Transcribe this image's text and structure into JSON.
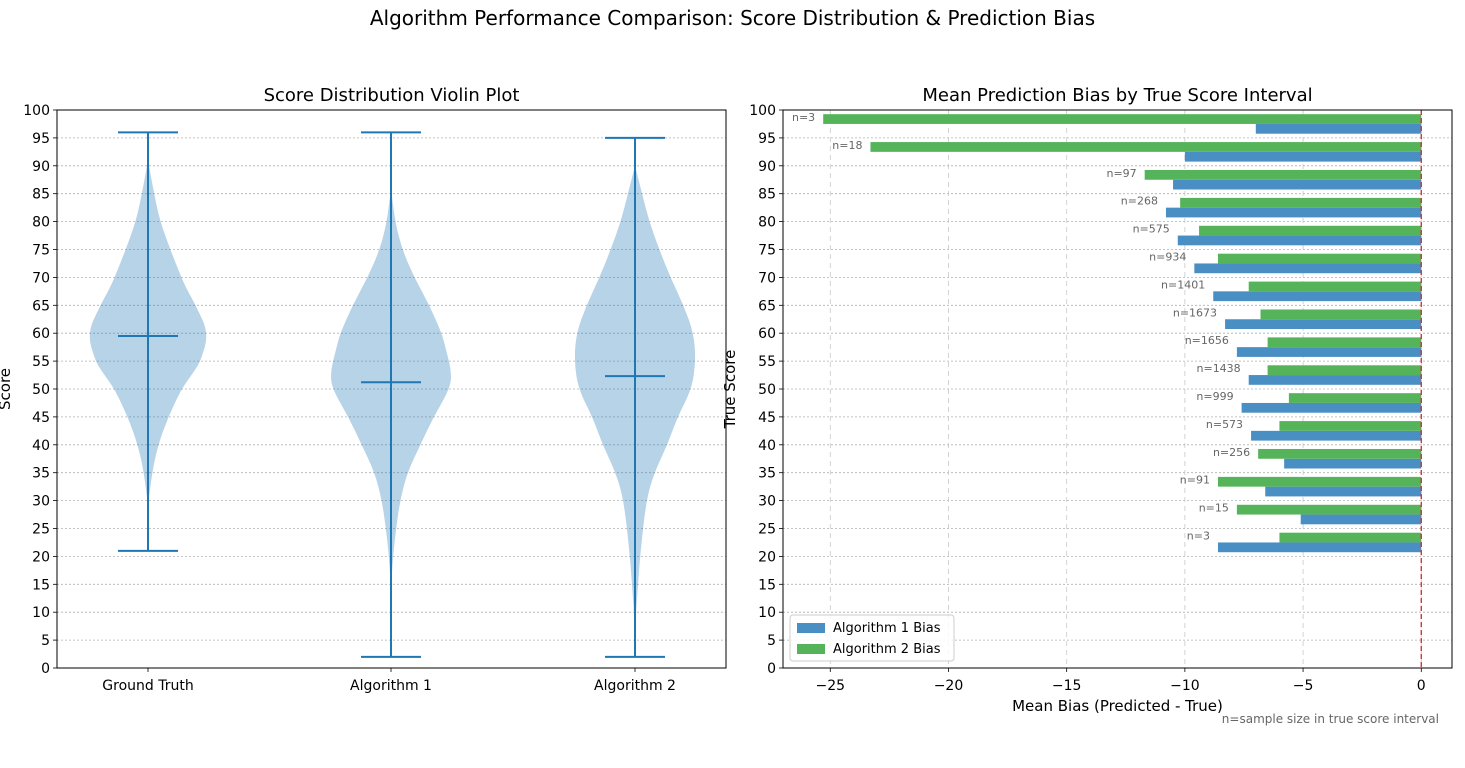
{
  "suptitle": "Algorithm Performance Comparison: Score Distribution & Prediction Bias",
  "footnote": "n=sample size in true score interval",
  "colors": {
    "violin_fill": "#1f77b4",
    "violin_line": "#1f77b4",
    "algo1": "#4a8fc4",
    "algo2": "#55b35a",
    "zero_line": "#d62728",
    "grid": "#b0b0b0",
    "annotation": "#666666"
  },
  "chart_data": [
    {
      "type": "violin",
      "title": "Score Distribution Violin Plot",
      "xlabel": "",
      "ylabel": "Score",
      "ylim": [
        0,
        100
      ],
      "yticks": [
        0,
        5,
        10,
        15,
        20,
        25,
        30,
        35,
        40,
        45,
        50,
        55,
        60,
        65,
        70,
        75,
        80,
        85,
        90,
        95,
        100
      ],
      "grid": "y, dotted",
      "categories": [
        "Ground Truth",
        "Algorithm 1",
        "Algorithm 2"
      ],
      "series": [
        {
          "category": "Ground Truth",
          "min": 21,
          "max": 96,
          "mean": 59.5,
          "density_y": [
            29,
            35,
            40,
            45,
            50,
            53,
            55,
            60,
            65,
            68,
            70,
            75,
            80,
            85,
            91
          ],
          "density_halfwidth": [
            0.0,
            0.04,
            0.1,
            0.2,
            0.33,
            0.45,
            0.52,
            0.6,
            0.47,
            0.38,
            0.33,
            0.22,
            0.12,
            0.06,
            0.0
          ]
        },
        {
          "category": "Algorithm 1",
          "min": 2,
          "max": 96,
          "mean": 51.2,
          "density_y": [
            14,
            20,
            25,
            30,
            35,
            40,
            45,
            50,
            53,
            58,
            60,
            65,
            70,
            75,
            80,
            86
          ],
          "density_halfwidth": [
            0.0,
            0.02,
            0.05,
            0.09,
            0.16,
            0.29,
            0.42,
            0.58,
            0.6,
            0.53,
            0.5,
            0.38,
            0.23,
            0.11,
            0.04,
            0.0
          ]
        },
        {
          "category": "Algorithm 2",
          "min": 2,
          "max": 95,
          "mean": 52.3,
          "density_y": [
            6,
            10,
            15,
            20,
            30,
            35,
            40,
            45,
            50,
            55,
            60,
            65,
            70,
            75,
            80,
            85,
            90
          ],
          "density_halfwidth": [
            0.0,
            0.01,
            0.03,
            0.05,
            0.11,
            0.19,
            0.32,
            0.42,
            0.56,
            0.6,
            0.58,
            0.48,
            0.35,
            0.24,
            0.14,
            0.07,
            0.0
          ]
        }
      ]
    },
    {
      "type": "bar",
      "orientation": "horizontal",
      "title": "Mean Prediction Bias by True Score Interval",
      "xlabel": "Mean Bias (Predicted - True)",
      "ylabel": "True Score",
      "xlim": [
        -27,
        1.3
      ],
      "ylim": [
        0,
        100
      ],
      "xticks": [
        -25,
        -20,
        -15,
        -10,
        -5,
        0
      ],
      "xtick_labels": [
        "−25",
        "−20",
        "−15",
        "−10",
        "−5",
        "0"
      ],
      "yticks": [
        0,
        5,
        10,
        15,
        20,
        25,
        30,
        35,
        40,
        45,
        50,
        55,
        60,
        65,
        70,
        75,
        80,
        85,
        90,
        95,
        100
      ],
      "grid": "both, dashed x / dotted y",
      "reference_line": 0,
      "legend": "lower-left",
      "interval_centers": [
        22.5,
        27.5,
        32.5,
        37.5,
        42.5,
        47.5,
        52.5,
        57.5,
        62.5,
        67.5,
        72.5,
        77.5,
        82.5,
        87.5,
        92.5,
        97.5
      ],
      "series": [
        {
          "name": "Algorithm 1 Bias",
          "values": [
            -8.6,
            -5.1,
            -6.6,
            -5.8,
            -7.2,
            -7.6,
            -7.3,
            -7.8,
            -8.3,
            -8.8,
            -9.6,
            -10.3,
            -10.8,
            -10.5,
            -10.0,
            -7.0
          ]
        },
        {
          "name": "Algorithm 2 Bias",
          "values": [
            -6.0,
            -7.8,
            -8.6,
            -6.9,
            -6.0,
            -5.6,
            -6.5,
            -6.5,
            -6.8,
            -7.3,
            -8.6,
            -9.4,
            -10.2,
            -11.7,
            -23.3,
            -25.3
          ]
        }
      ],
      "annotations": [
        "n=3",
        "n=15",
        "n=91",
        "n=256",
        "n=573",
        "n=999",
        "n=1438",
        "n=1656",
        "n=1673",
        "n=1401",
        "n=934",
        "n=575",
        "n=268",
        "n=97",
        "n=18",
        "n=3"
      ]
    }
  ]
}
